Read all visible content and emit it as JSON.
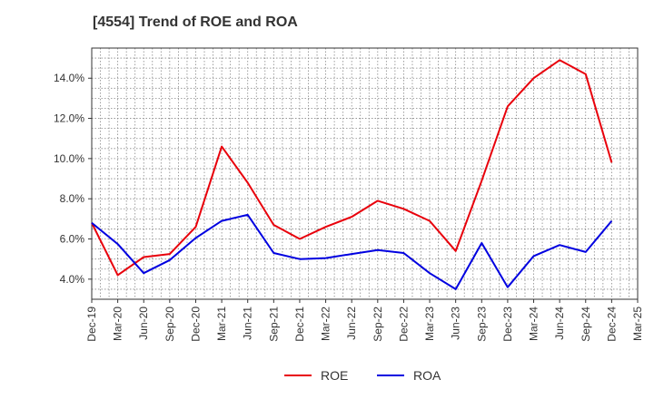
{
  "chart_data": {
    "type": "line",
    "title": "[4554]  Trend of ROE and ROA",
    "xlabel": "",
    "ylabel": "",
    "categories": [
      "Dec-19",
      "Mar-20",
      "Jun-20",
      "Sep-20",
      "Dec-20",
      "Mar-21",
      "Jun-21",
      "Sep-21",
      "Dec-21",
      "Mar-22",
      "Jun-22",
      "Sep-22",
      "Dec-22",
      "Mar-23",
      "Jun-23",
      "Sep-23",
      "Dec-23",
      "Mar-24",
      "Jun-24",
      "Sep-24",
      "Dec-24",
      "Mar-25"
    ],
    "y_ticks": [
      4.0,
      6.0,
      8.0,
      10.0,
      12.0,
      14.0
    ],
    "y_tick_labels": [
      "4.0%",
      "6.0%",
      "8.0%",
      "10.0%",
      "12.0%",
      "14.0%"
    ],
    "ylim": [
      3.0,
      15.5
    ],
    "grid": true,
    "legend_position": "bottom",
    "series": [
      {
        "name": "ROE",
        "color": "#e8000b",
        "values": [
          6.8,
          4.2,
          5.1,
          5.25,
          6.6,
          10.6,
          8.8,
          6.7,
          6.0,
          6.6,
          7.1,
          7.9,
          7.5,
          6.9,
          5.4,
          8.9,
          12.6,
          14.0,
          14.9,
          14.2,
          9.8,
          null
        ]
      },
      {
        "name": "ROA",
        "color": "#0000e0",
        "values": [
          6.8,
          5.75,
          4.3,
          4.95,
          6.05,
          6.9,
          7.2,
          5.3,
          5.0,
          5.05,
          5.25,
          5.45,
          5.3,
          4.3,
          3.5,
          5.8,
          3.6,
          5.15,
          5.7,
          5.35,
          6.9,
          null
        ]
      }
    ]
  }
}
